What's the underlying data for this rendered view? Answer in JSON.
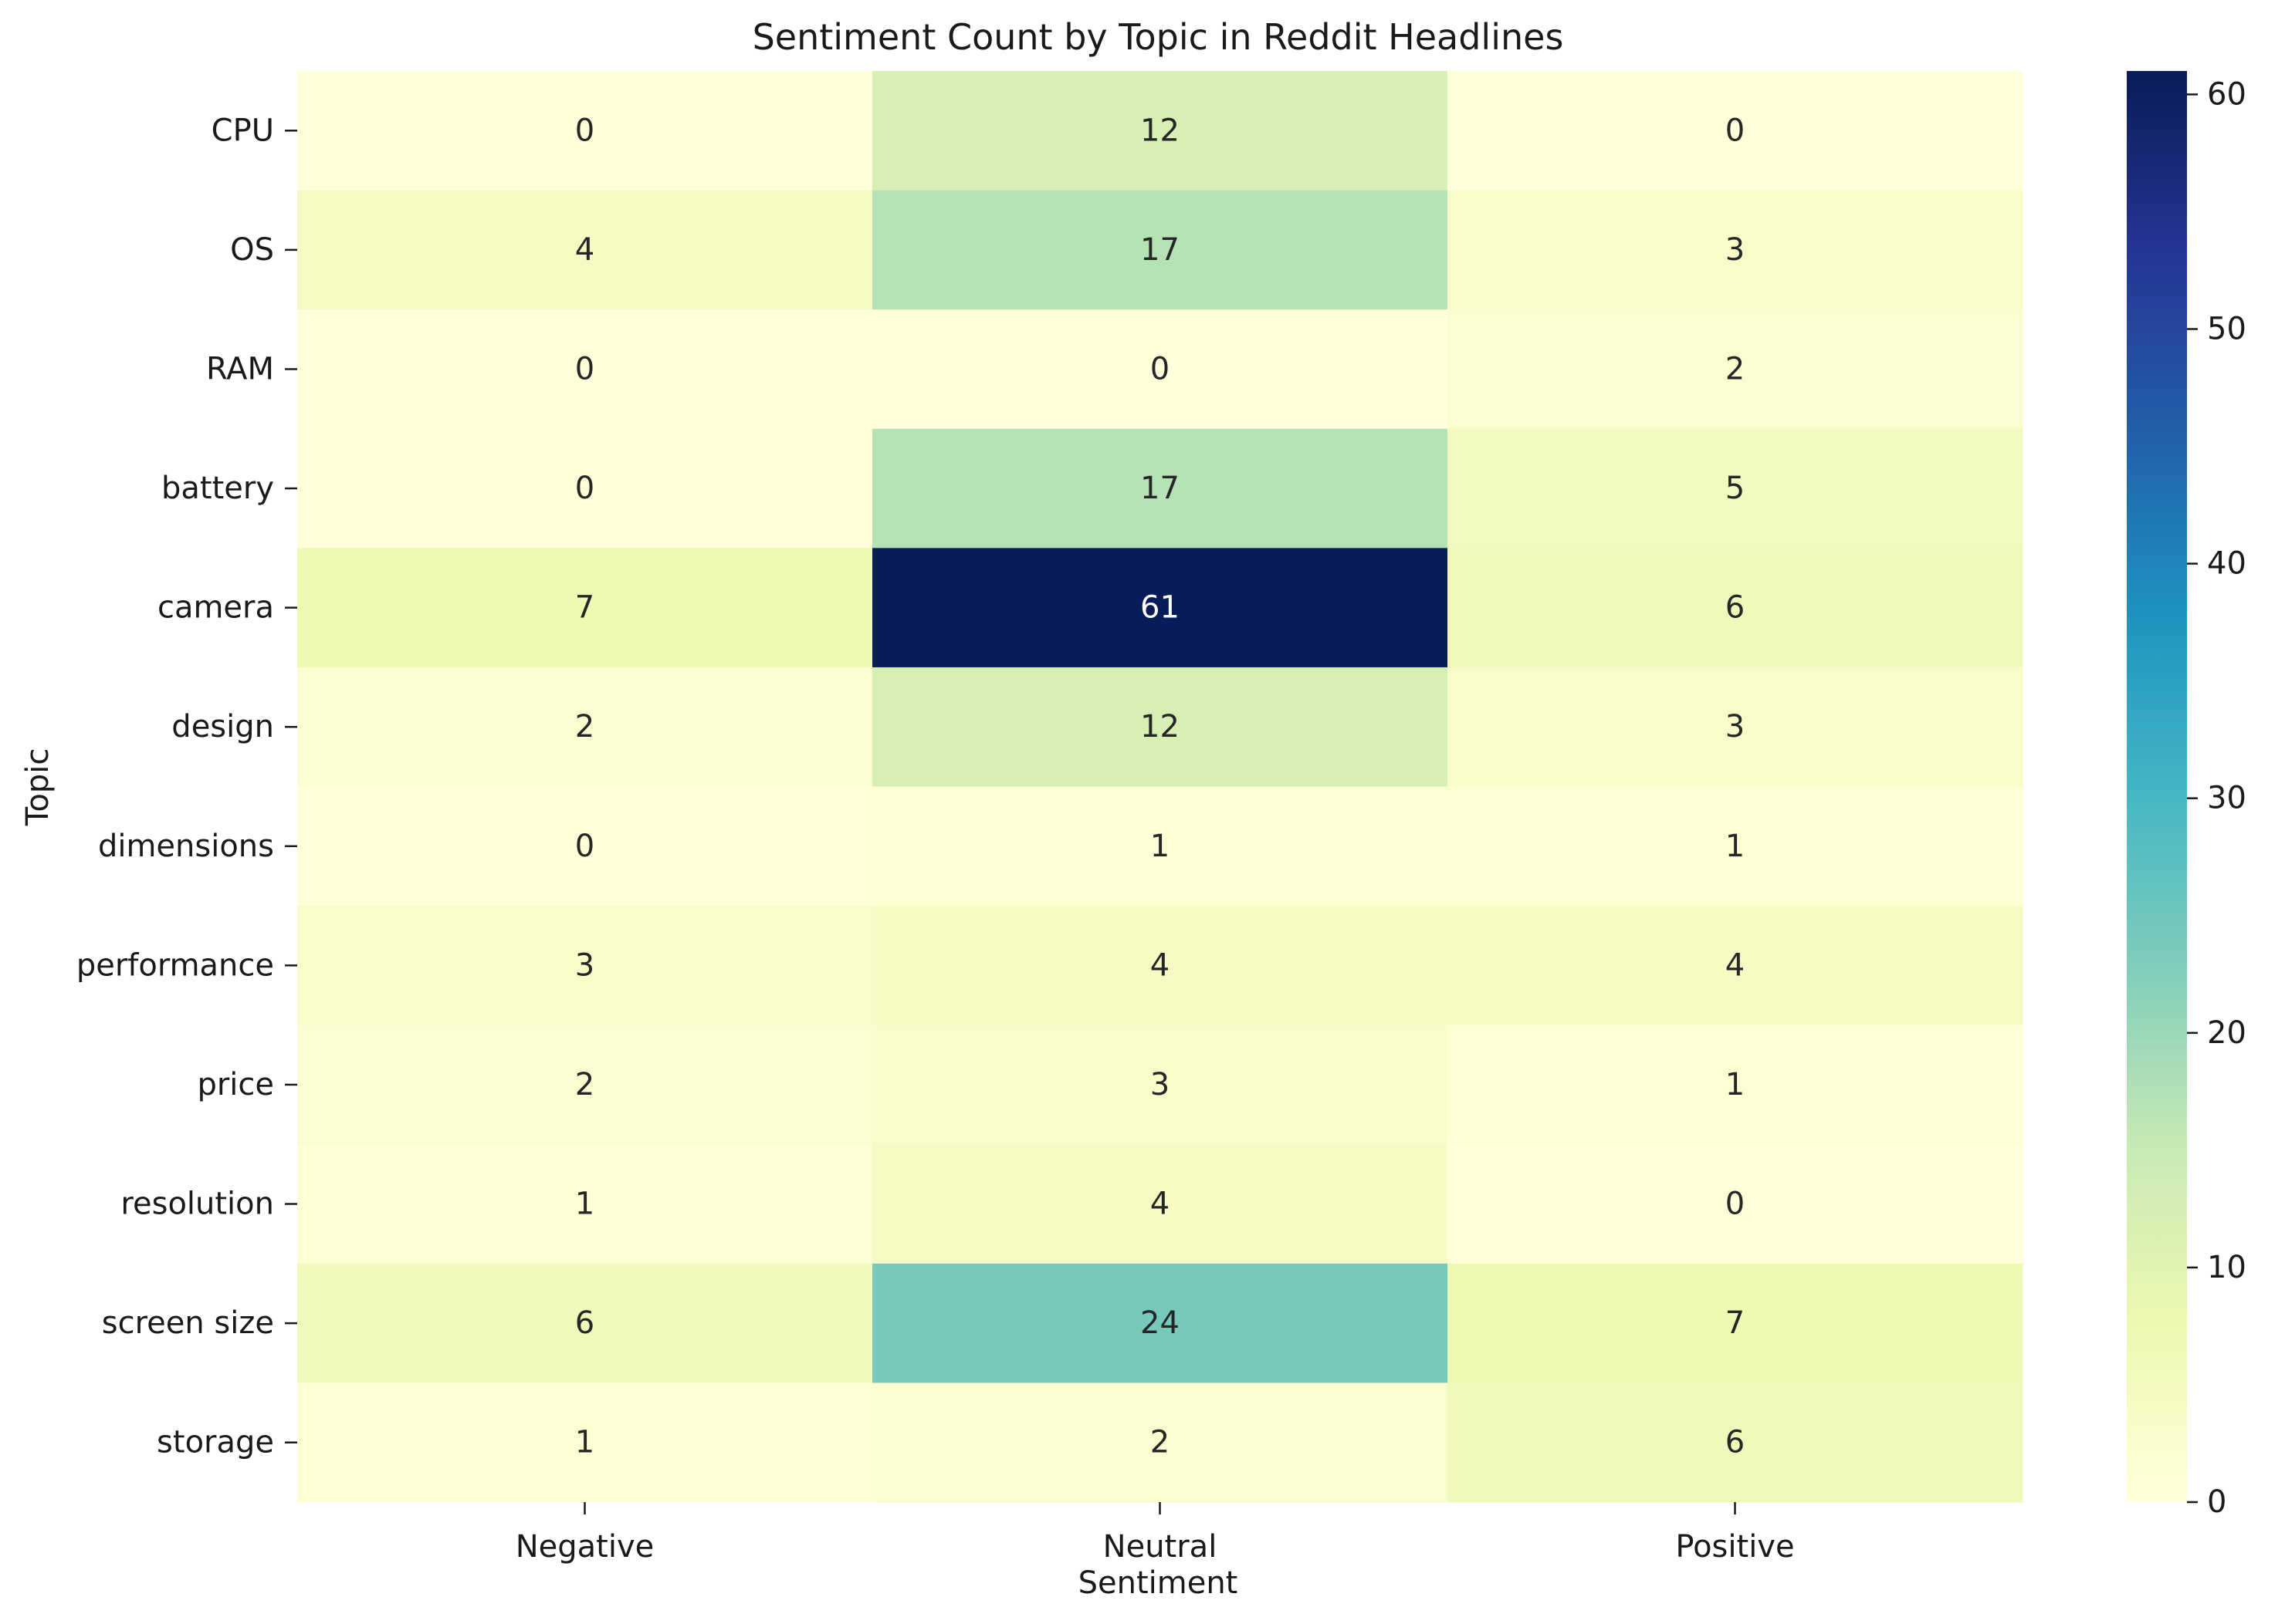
{
  "chart_data": {
    "type": "heatmap",
    "title": "Sentiment Count by Topic in Reddit Headlines",
    "xlabel": "Sentiment",
    "ylabel": "Topic",
    "x_categories": [
      "Negative",
      "Neutral",
      "Positive"
    ],
    "y_categories": [
      "CPU",
      "OS",
      "RAM",
      "battery",
      "camera",
      "design",
      "dimensions",
      "performance",
      "price",
      "resolution",
      "screen size",
      "storage"
    ],
    "values": [
      [
        0,
        12,
        0
      ],
      [
        4,
        17,
        3
      ],
      [
        0,
        0,
        2
      ],
      [
        0,
        17,
        5
      ],
      [
        7,
        61,
        6
      ],
      [
        2,
        12,
        3
      ],
      [
        0,
        1,
        1
      ],
      [
        3,
        4,
        4
      ],
      [
        2,
        3,
        1
      ],
      [
        1,
        4,
        0
      ],
      [
        6,
        24,
        7
      ],
      [
        1,
        2,
        6
      ]
    ],
    "annotated": true,
    "colormap": "YlGnBu",
    "colorbar": {
      "range": [
        0,
        61
      ],
      "ticks": [
        "0",
        "10",
        "20",
        "30",
        "40",
        "50",
        "60"
      ]
    }
  }
}
